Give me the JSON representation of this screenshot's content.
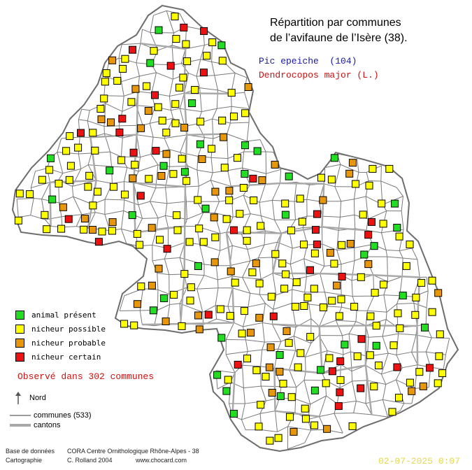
{
  "title_line1": "Répartition par communes",
  "title_line2": "de l’avifaune de l’Isère (38).",
  "species_common": "Pic epeiche  (104)",
  "species_latin": "Dendrocopos major (L.)",
  "legend": [
    {
      "label": "animal présent",
      "color": "#22dd22"
    },
    {
      "label": "nicheur possible",
      "color": "#ffff00"
    },
    {
      "label": "nicheur probable",
      "color": "#e8960a"
    },
    {
      "label": "nicheur certain",
      "color": "#ee1111"
    }
  ],
  "observed_text": "Observé dans 302 communes",
  "north_label": "Nord",
  "communes_label": "communes (533)",
  "cantons_label": "cantons",
  "credits": {
    "row1_label": "Base de données",
    "row1_value": "CORA Centre Ornithologique Rhône-Alpes - 38",
    "row2_label": "Cartographie",
    "row2_author": "C. Rolland 2004",
    "row2_url": "www.chocard.com"
  },
  "timestamp": "02-07-2025 0:07",
  "colors": {
    "commune_border": "#7a7a7a",
    "canton_border": "#a9a9a9",
    "present": "#22dd22",
    "possible": "#ffff00",
    "probable": "#e8960a",
    "certain": "#ee1111"
  }
}
